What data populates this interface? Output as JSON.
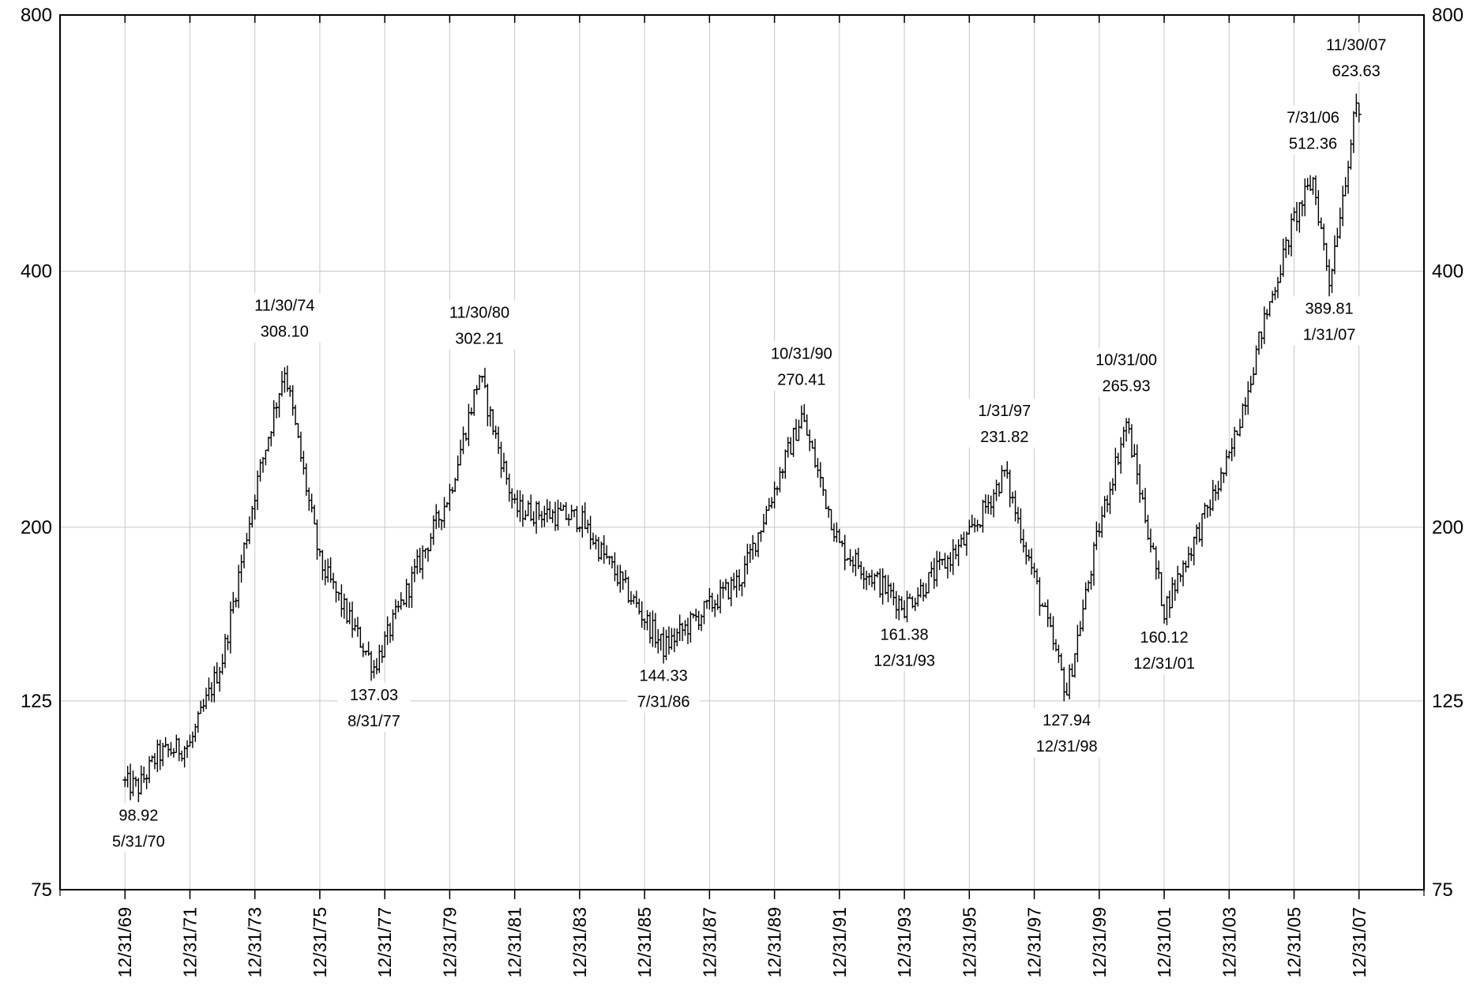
{
  "chart_data": {
    "type": "bar",
    "subtype": "ohlc",
    "title": "",
    "xlabel": "",
    "ylabel": "",
    "yscale": "log",
    "ylim": [
      75,
      800
    ],
    "xlim": [
      "12/31/67",
      "12/31/09"
    ],
    "grid": true,
    "legend": "none",
    "y_ticks": [
      "75",
      "125",
      "200",
      "400",
      "800"
    ],
    "x_ticks": [
      "12/31/69",
      "12/31/71",
      "12/31/73",
      "12/31/75",
      "12/31/77",
      "12/31/79",
      "12/31/81",
      "12/31/83",
      "12/31/85",
      "12/31/87",
      "12/31/89",
      "12/31/91",
      "12/31/93",
      "12/31/95",
      "12/31/97",
      "12/31/99",
      "12/31/01",
      "12/31/03",
      "12/31/05",
      "12/31/07"
    ],
    "colors": {
      "bars": "#000000",
      "grid": "#c8c8c8",
      "axis": "#000000"
    },
    "annotations": [
      {
        "date": "5/31/70",
        "value": "98.92",
        "position": "below"
      },
      {
        "date": "11/30/74",
        "value": "308.10",
        "position": "above"
      },
      {
        "date": "8/31/77",
        "value": "137.03",
        "position": "below"
      },
      {
        "date": "11/30/80",
        "value": "302.21",
        "position": "above"
      },
      {
        "date": "7/31/86",
        "value": "144.33",
        "position": "below"
      },
      {
        "date": "10/31/90",
        "value": "270.41",
        "position": "above"
      },
      {
        "date": "12/31/93",
        "value": "161.38",
        "position": "below"
      },
      {
        "date": "1/31/97",
        "value": "231.82",
        "position": "above"
      },
      {
        "date": "12/31/98",
        "value": "127.94",
        "position": "below"
      },
      {
        "date": "10/31/00",
        "value": "265.93",
        "position": "above"
      },
      {
        "date": "12/31/01",
        "value": "160.12",
        "position": "below"
      },
      {
        "date": "7/31/06",
        "value": "512.36",
        "position": "above"
      },
      {
        "date": "1/31/07",
        "value": "389.81",
        "position": "below"
      },
      {
        "date": "11/30/07",
        "value": "623.63",
        "position": "above"
      }
    ],
    "series": [
      {
        "key_points": [
          [
            "12/31/69",
            100
          ],
          [
            "5/31/70",
            98.92
          ],
          [
            "12/31/70",
            108
          ],
          [
            "12/31/71",
            111
          ],
          [
            "12/31/72",
            140
          ],
          [
            "12/31/73",
            220
          ],
          [
            "11/30/74",
            308.1
          ],
          [
            "12/31/75",
            182
          ],
          [
            "8/31/77",
            137.03
          ],
          [
            "12/31/79",
            220
          ],
          [
            "11/30/80",
            302.21
          ],
          [
            "12/31/81",
            210
          ],
          [
            "12/31/83",
            205
          ],
          [
            "7/31/86",
            144.33
          ],
          [
            "12/31/88",
            175
          ],
          [
            "10/31/90",
            270.41
          ],
          [
            "12/31/91",
            190
          ],
          [
            "12/31/93",
            161.38
          ],
          [
            "12/31/95",
            195
          ],
          [
            "1/31/97",
            231.82
          ],
          [
            "12/31/98",
            127.94
          ],
          [
            "12/31/99",
            200
          ],
          [
            "10/31/00",
            265.93
          ],
          [
            "12/31/01",
            160.12
          ],
          [
            "12/31/03",
            240
          ],
          [
            "12/31/04",
            340
          ],
          [
            "12/31/05",
            460
          ],
          [
            "7/31/06",
            512.36
          ],
          [
            "1/31/07",
            389.81
          ],
          [
            "11/30/07",
            623.63
          ],
          [
            "12/31/07",
            612
          ]
        ]
      }
    ]
  }
}
